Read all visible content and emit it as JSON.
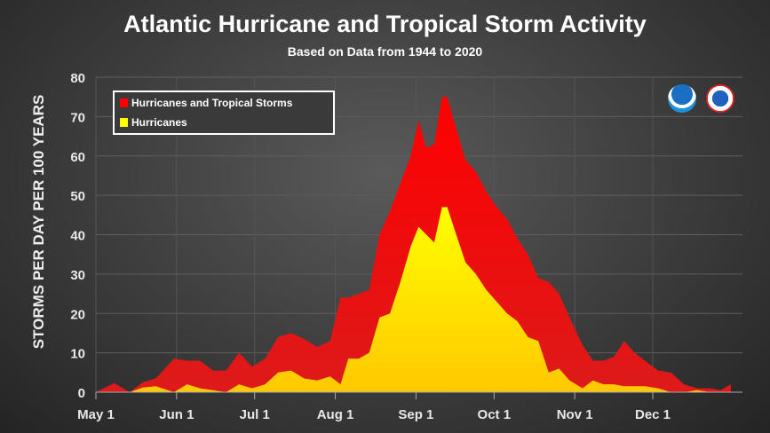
{
  "chart_data": {
    "type": "area",
    "title": "Atlantic Hurricane and Tropical Storm Activity",
    "subtitle": "Based on Data from 1944 to 2020",
    "ylabel": "STORMS PER DAY PER 100 YEARS",
    "xlabel": "",
    "ylim": [
      0,
      80
    ],
    "yticks": [
      "0",
      "10",
      "20",
      "30",
      "40",
      "50",
      "60",
      "70",
      "80"
    ],
    "xticks": [
      "May 1",
      "Jun 1",
      "Jul 1",
      "Aug 1",
      "Sep 1",
      "Oct 1",
      "Nov 1",
      "Dec 1"
    ],
    "grid": true,
    "legend_position": "top-left",
    "x": [
      "May 1",
      "May 8",
      "May 14",
      "May 19",
      "May 24",
      "May 31",
      "Jun 5",
      "Jun 10",
      "Jun 15",
      "Jun 20",
      "Jun 25",
      "Jun 30",
      "Jul 5",
      "Jul 10",
      "Jul 15",
      "Jul 20",
      "Jul 25",
      "Jul 30",
      "Aug 3",
      "Aug 6",
      "Aug 10",
      "Aug 14",
      "Aug 18",
      "Aug 22",
      "Aug 26",
      "Aug 30",
      "Sep 2",
      "Sep 5",
      "Sep 8",
      "Sep 11",
      "Sep 13",
      "Sep 16",
      "Sep 20",
      "Sep 24",
      "Sep 28",
      "Oct 2",
      "Oct 6",
      "Oct 10",
      "Oct 14",
      "Oct 18",
      "Oct 22",
      "Oct 26",
      "Oct 30",
      "Nov 4",
      "Nov 8",
      "Nov 12",
      "Nov 16",
      "Nov 20",
      "Nov 24",
      "Nov 28",
      "Dec 3",
      "Dec 8",
      "Dec 13",
      "Dec 18",
      "Dec 23",
      "Dec 27",
      "Dec 31"
    ],
    "series": [
      {
        "name": "Hurricanes and Tropical Storms",
        "color": "#ff0000",
        "values": [
          0,
          2.3,
          0,
          2.5,
          3.5,
          8.5,
          8,
          8,
          5.5,
          5.5,
          10,
          6.5,
          8.5,
          14,
          15,
          13.5,
          11.5,
          13,
          24,
          24,
          25,
          26,
          40,
          46,
          53,
          60,
          69,
          62,
          63,
          75,
          75,
          68,
          59,
          56,
          51,
          47,
          44,
          39,
          35,
          29,
          28,
          25,
          19,
          12,
          8,
          8,
          9,
          13,
          10,
          8,
          5.5,
          5,
          2,
          1,
          1,
          0.5,
          2
        ]
      },
      {
        "name": "Hurricanes",
        "color": "#ffff00",
        "values": [
          0,
          0,
          0,
          1.2,
          1.5,
          0,
          2,
          1,
          0.5,
          0,
          2,
          1,
          2,
          5,
          5.5,
          3.5,
          3,
          4,
          2,
          8.5,
          8.5,
          10,
          19,
          20,
          28,
          37,
          42,
          40,
          38,
          47,
          47,
          41,
          33,
          30,
          26,
          23,
          20,
          18,
          14,
          13,
          5,
          6,
          3,
          1,
          3,
          2,
          2,
          1.5,
          1.5,
          1.5,
          1,
          0,
          0,
          0.5,
          0,
          0,
          0
        ]
      }
    ]
  },
  "logos": {
    "left": "noaa-logo",
    "right": "nws-logo"
  }
}
